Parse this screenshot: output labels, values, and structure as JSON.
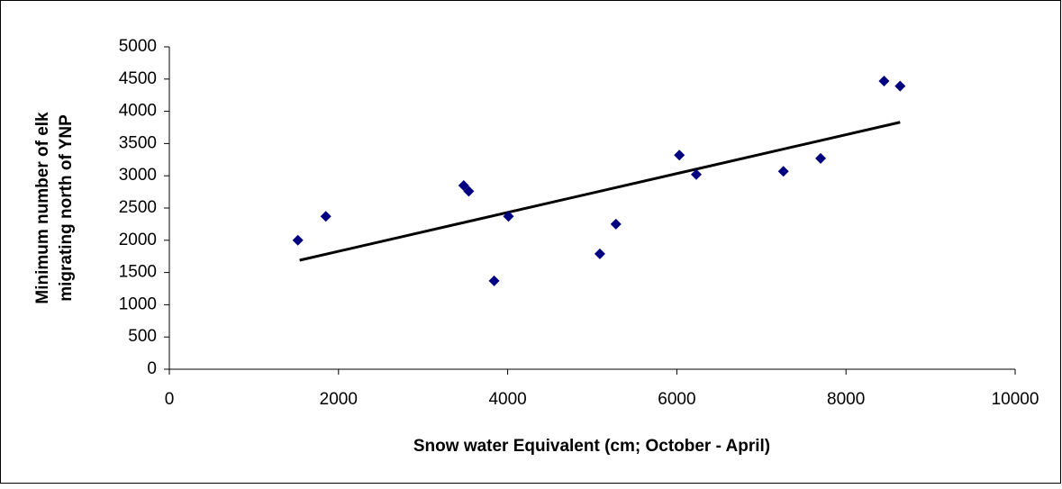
{
  "chart_data": {
    "type": "scatter",
    "xlabel": "Snow water Equivalent (cm; October - April)",
    "ylabel": [
      "Minimum number of elk",
      "migrating north of YNP"
    ],
    "x": [
      1520,
      1850,
      3480,
      3540,
      3840,
      4010,
      5090,
      5280,
      6030,
      6230,
      7260,
      7700,
      8450,
      8640
    ],
    "values": [
      2000,
      2370,
      2850,
      2760,
      1370,
      2370,
      1790,
      2250,
      3320,
      3020,
      3070,
      3270,
      4470,
      4390
    ],
    "color": "#000080",
    "trendline": {
      "x": [
        1540,
        8640
      ],
      "values": [
        1690,
        3830
      ],
      "color": "#000000"
    },
    "xlim": [
      0,
      10000
    ],
    "xticks": [
      0,
      2000,
      4000,
      6000,
      8000,
      10000
    ],
    "ylim": [
      0,
      5000
    ],
    "yticks": [
      0,
      500,
      1000,
      1500,
      2000,
      2500,
      3000,
      3500,
      4000,
      4500,
      5000
    ],
    "grid": false
  }
}
